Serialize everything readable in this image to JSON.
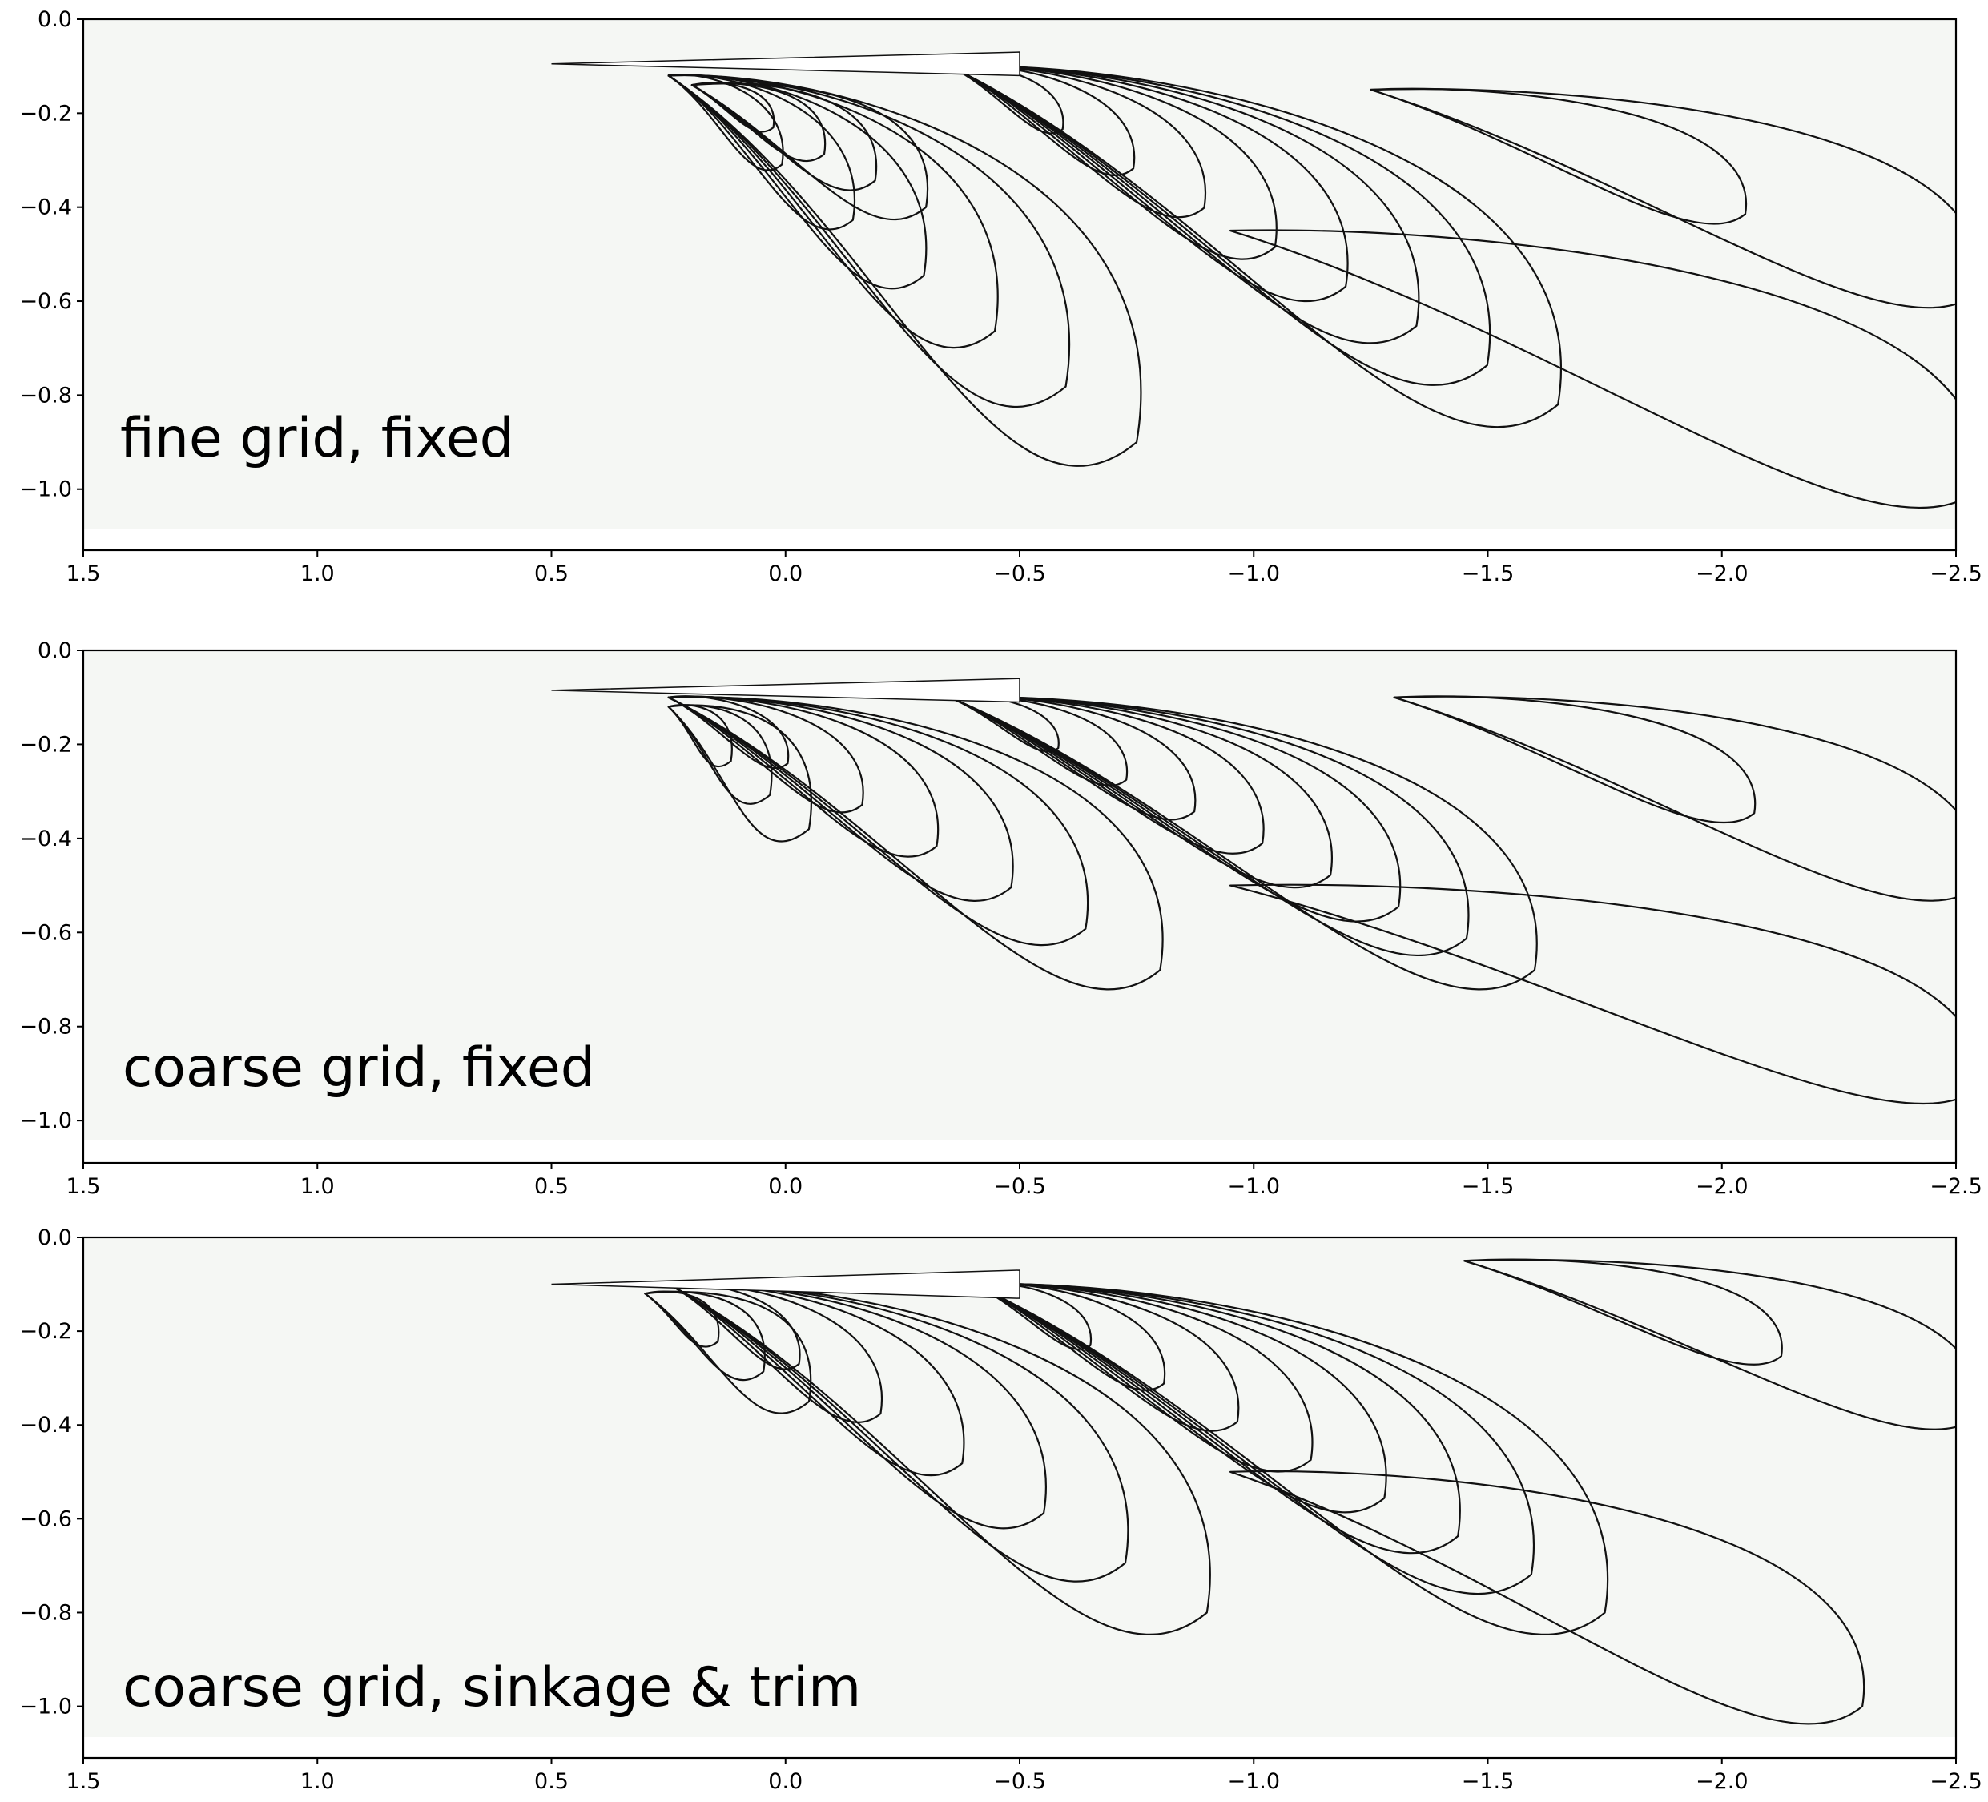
{
  "chart_data": [
    {
      "type": "contour",
      "title": "fine grid, fixed",
      "xlabel": "",
      "ylabel": "",
      "xlim": [
        1.5,
        -2.5
      ],
      "ylim": [
        -1.13,
        0.0
      ],
      "field_bottom": -1.09,
      "x_ticks": [
        1.5,
        1.0,
        0.5,
        0.0,
        -0.5,
        -1.0,
        -1.5,
        -2.0,
        -2.5
      ],
      "x_tick_labels": [
        "1.5",
        "1.0",
        "0.5",
        "0.0",
        "−0.5",
        "−1.0",
        "−1.5",
        "−2.0",
        "−2.5"
      ],
      "y_ticks": [
        0.0,
        -0.2,
        -0.4,
        -0.6,
        -0.8,
        -1.0
      ],
      "y_tick_labels": [
        "0.0",
        "−0.2",
        "−0.4",
        "−0.6",
        "−0.8",
        "−1.0"
      ],
      "hull": {
        "bow_x": 0.5,
        "stern_x": -0.5,
        "y_top": -0.07,
        "y_bottom": -0.12
      },
      "lobes": [
        {
          "kind": "crest",
          "apex": [
            0.2,
            -0.14
          ],
          "reach": [
            -0.3,
            -0.4
          ],
          "levels": 4
        },
        {
          "kind": "trough",
          "apex": [
            0.25,
            -0.12
          ],
          "reach": [
            -0.75,
            -0.9
          ],
          "levels": 6
        },
        {
          "kind": "crest",
          "apex": [
            -0.35,
            -0.1
          ],
          "reach": [
            -1.65,
            -0.82
          ],
          "levels": 8
        },
        {
          "kind": "trough",
          "apex": [
            -1.25,
            -0.15
          ],
          "reach": [
            -2.55,
            -0.58
          ],
          "levels": 2
        },
        {
          "kind": "crest",
          "apex": [
            -0.95,
            -0.45
          ],
          "reach": [
            -2.55,
            -1.0
          ],
          "levels": 1
        }
      ]
    },
    {
      "type": "contour",
      "title": "coarse grid, fixed",
      "xlabel": "",
      "ylabel": "",
      "xlim": [
        1.5,
        -2.5
      ],
      "ylim": [
        -1.09,
        0.0
      ],
      "field_bottom": -1.05,
      "x_ticks": [
        1.5,
        1.0,
        0.5,
        0.0,
        -0.5,
        -1.0,
        -1.5,
        -2.0,
        -2.5
      ],
      "x_tick_labels": [
        "1.5",
        "1.0",
        "0.5",
        "0.0",
        "−0.5",
        "−1.0",
        "−1.5",
        "−2.0",
        "−2.5"
      ],
      "y_ticks": [
        0.0,
        -0.2,
        -0.4,
        -0.6,
        -0.8,
        -1.0
      ],
      "y_tick_labels": [
        "0.0",
        "−0.2",
        "−0.4",
        "−0.6",
        "−0.8",
        "−1.0"
      ],
      "hull": {
        "bow_x": 0.5,
        "stern_x": -0.5,
        "y_top": -0.06,
        "y_bottom": -0.11
      },
      "lobes": [
        {
          "kind": "crest",
          "apex": [
            0.25,
            -0.12
          ],
          "reach": [
            -0.05,
            -0.38
          ],
          "levels": 3
        },
        {
          "kind": "trough",
          "apex": [
            0.25,
            -0.1
          ],
          "reach": [
            -0.8,
            -0.68
          ],
          "levels": 6
        },
        {
          "kind": "crest",
          "apex": [
            -0.35,
            -0.1
          ],
          "reach": [
            -1.6,
            -0.68
          ],
          "levels": 8
        },
        {
          "kind": "trough",
          "apex": [
            -1.3,
            -0.1
          ],
          "reach": [
            -2.55,
            -0.5
          ],
          "levels": 2
        },
        {
          "kind": "crest",
          "apex": [
            -0.95,
            -0.5
          ],
          "reach": [
            -2.55,
            -0.93
          ],
          "levels": 1
        }
      ]
    },
    {
      "type": "contour",
      "title": "coarse grid, sinkage & trim",
      "xlabel": "",
      "ylabel": "",
      "xlim": [
        1.5,
        -2.5
      ],
      "ylim": [
        -1.11,
        0.0
      ],
      "field_bottom": -1.07,
      "x_ticks": [
        1.5,
        1.0,
        0.5,
        0.0,
        -0.5,
        -1.0,
        -1.5,
        -2.0,
        -2.5
      ],
      "x_tick_labels": [
        "1.5",
        "1.0",
        "0.5",
        "0.0",
        "−0.5",
        "−1.0",
        "−1.5",
        "−2.0",
        "−2.5"
      ],
      "y_ticks": [
        0.0,
        -0.2,
        -0.4,
        -0.6,
        -0.8,
        -1.0
      ],
      "y_tick_labels": [
        "0.0",
        "−0.2",
        "−0.4",
        "−0.6",
        "−0.8",
        "−1.0"
      ],
      "hull": {
        "bow_x": 0.5,
        "stern_x": -0.5,
        "y_top": -0.07,
        "y_bottom": -0.13
      },
      "lobes": [
        {
          "kind": "crest",
          "apex": [
            0.3,
            -0.12
          ],
          "reach": [
            -0.05,
            -0.35
          ],
          "levels": 3
        },
        {
          "kind": "trough",
          "apex": [
            0.25,
            -0.1
          ],
          "reach": [
            -0.9,
            -0.8
          ],
          "levels": 6
        },
        {
          "kind": "crest",
          "apex": [
            -0.4,
            -0.1
          ],
          "reach": [
            -1.75,
            -0.8
          ],
          "levels": 8
        },
        {
          "kind": "trough",
          "apex": [
            -1.45,
            -0.05
          ],
          "reach": [
            -2.55,
            -0.38
          ],
          "levels": 2
        },
        {
          "kind": "crest",
          "apex": [
            -0.95,
            -0.5
          ],
          "reach": [
            -2.3,
            -1.0
          ],
          "levels": 1
        }
      ]
    }
  ],
  "colors": {
    "background": "#f5f7f4",
    "hull": "#ffffff",
    "trough": [
      "#eef1f7",
      "#dbe1ee",
      "#bfc8e2",
      "#a1afd4",
      "#8494c5",
      "#6272b2",
      "#2d4596"
    ],
    "crest": [
      "#e7eee5",
      "#d4e3d0",
      "#bfd5ba",
      "#a8c8a2",
      "#93bb8c",
      "#7fad77",
      "#6f9f66",
      "#5f8f56"
    ]
  }
}
